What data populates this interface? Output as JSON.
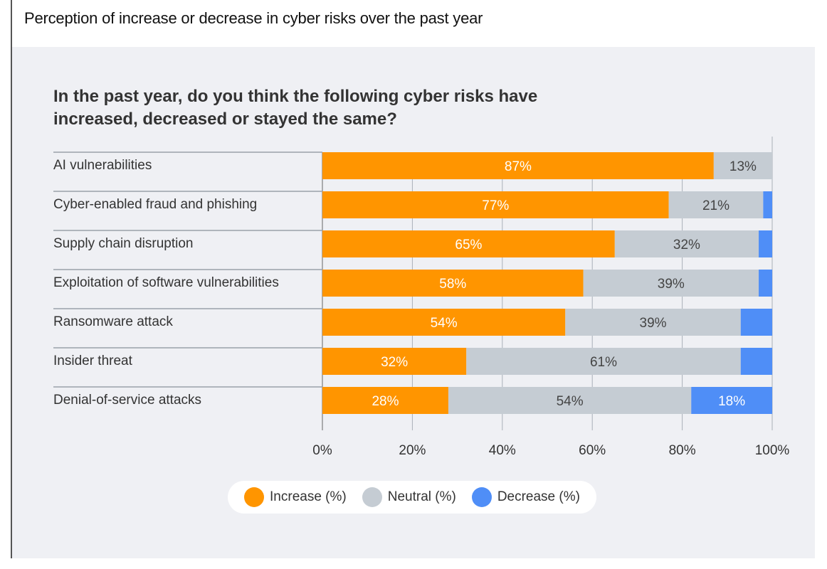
{
  "header": {
    "title": "Perception of increase or decrease in cyber risks over the past year"
  },
  "chart_data": {
    "type": "bar",
    "orientation": "horizontal-stacked",
    "title": "In the past year, do you think the following cyber risks have increased, decreased or stayed the same?",
    "categories": [
      "AI vulnerabilities",
      "Cyber-enabled fraud and phishing",
      "Supply chain disruption",
      "Exploitation of software vulnerabilities",
      "Ransomware attack",
      "Insider threat",
      "Denial-of-service attacks"
    ],
    "series": [
      {
        "name": "Increase (%)",
        "color": "#ff9500",
        "values": [
          87,
          77,
          65,
          58,
          54,
          32,
          28
        ],
        "labels": [
          "87%",
          "77%",
          "65%",
          "58%",
          "54%",
          "32%",
          "28%"
        ]
      },
      {
        "name": "Neutral (%)",
        "color": "#c5ccd3",
        "values": [
          13,
          21,
          32,
          39,
          39,
          61,
          54
        ],
        "labels": [
          "13%",
          "21%",
          "32%",
          "39%",
          "39%",
          "61%",
          "54%"
        ]
      },
      {
        "name": "Decrease (%)",
        "color": "#4f8ef7",
        "values": [
          1,
          2,
          3,
          3,
          7,
          7,
          18
        ],
        "labels": [
          "",
          "",
          "",
          "",
          "",
          "",
          "18%"
        ]
      }
    ],
    "xlim": [
      0,
      100
    ],
    "xticks": [
      "0%",
      "20%",
      "40%",
      "60%",
      "80%",
      "100%"
    ],
    "grid": true,
    "legend": "bottom-center"
  }
}
